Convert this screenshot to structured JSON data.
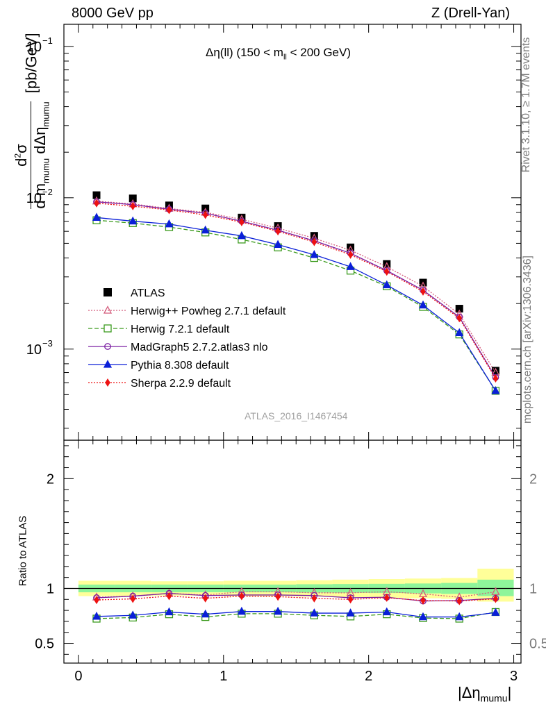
{
  "header": {
    "left_title": "8000 GeV pp",
    "right_title": "Z (Drell-Yan)"
  },
  "side_labels": {
    "rivet": "Rivet 3.1.10, ≥ 1.7M events",
    "mcplots": "mcplots.cern.ch [arXiv:1306.3436]"
  },
  "chart_data": [
    {
      "type": "scatter",
      "panel": "main",
      "annotation": "Δη(ll) (150 < m_ll < 200 GeV)",
      "analysis_label": "ATLAS_2016_I1467454",
      "ylabel": "d²σ / d m_mumu dΔη_mumu [pb/GeV]",
      "yscale": "log",
      "ylim": [
        0.00025,
        0.14
      ],
      "xlim": [
        -0.1,
        3.05
      ],
      "y_ticks": [
        {
          "value": 0.1,
          "base": "10",
          "exp": "−1"
        },
        {
          "value": 0.01,
          "base": "10",
          "exp": "−2"
        },
        {
          "value": 0.001,
          "base": "10",
          "exp": "−3"
        }
      ],
      "legend_position": "middle-left",
      "x": [
        0.125,
        0.375,
        0.625,
        0.875,
        1.125,
        1.375,
        1.625,
        1.875,
        2.125,
        2.375,
        2.625,
        2.875
      ],
      "series": [
        {
          "name": "ATLAS",
          "color": "#000000",
          "marker": "square",
          "line": "none",
          "values": [
            0.0104,
            0.0099,
            0.0089,
            0.0085,
            0.0074,
            0.0065,
            0.0056,
            0.0047,
            0.00365,
            0.00275,
            0.00185,
            0.00072
          ]
        },
        {
          "name": "Herwig++ Powheg 2.7.1 default",
          "color": "#d45c7c",
          "marker": "triangle-open",
          "line": "dotted",
          "values": [
            0.0095,
            0.0091,
            0.0085,
            0.008,
            0.0072,
            0.0063,
            0.0054,
            0.0045,
            0.0035,
            0.0026,
            0.0017,
            0.0007
          ]
        },
        {
          "name": "Herwig 7.2.1 default",
          "color": "#3a9a1c",
          "marker": "square-open",
          "line": "dashed",
          "values": [
            0.0071,
            0.0068,
            0.0064,
            0.0059,
            0.0053,
            0.0047,
            0.004,
            0.0033,
            0.0026,
            0.0019,
            0.00125,
            0.00053
          ]
        },
        {
          "name": "MadGraph5 2.7.2.atlas3 nlo",
          "color": "#7b1fa2",
          "marker": "circle-open",
          "line": "solid",
          "values": [
            0.0094,
            0.009,
            0.0084,
            0.0079,
            0.007,
            0.0061,
            0.0052,
            0.0043,
            0.0033,
            0.00245,
            0.00163,
            0.00065
          ]
        },
        {
          "name": "Pythia 8.308 default",
          "color": "#0a1fd8",
          "marker": "triangle",
          "line": "solid",
          "values": [
            0.0074,
            0.007,
            0.0067,
            0.0061,
            0.0056,
            0.0049,
            0.0042,
            0.0035,
            0.00265,
            0.00195,
            0.00128,
            0.00053
          ]
        },
        {
          "name": "Sherpa 2.2.9 default",
          "color": "#ee1111",
          "marker": "diamond",
          "line": "dotted",
          "values": [
            0.0092,
            0.0088,
            0.0083,
            0.0077,
            0.0069,
            0.006,
            0.0051,
            0.0042,
            0.00325,
            0.0024,
            0.0016,
            0.00064
          ]
        }
      ]
    },
    {
      "type": "scatter",
      "panel": "ratio",
      "ylabel": "Ratio to ATLAS",
      "xlabel": "|Δη_mumu|",
      "ylim": [
        0.32,
        2.35
      ],
      "xlim": [
        -0.1,
        3.05
      ],
      "y_ticks": [
        0.5,
        1,
        2
      ],
      "y_tick_labels": [
        "0.5",
        "1",
        "2"
      ],
      "x_ticks": [
        0,
        1,
        2,
        3
      ],
      "x_tick_labels": [
        "0",
        "1",
        "2",
        "3"
      ],
      "x": [
        0.125,
        0.375,
        0.625,
        0.875,
        1.125,
        1.375,
        1.625,
        1.875,
        2.125,
        2.375,
        2.625,
        2.875
      ],
      "band_edges": [
        0,
        0.25,
        0.5,
        0.75,
        1.0,
        1.25,
        1.5,
        1.75,
        2.0,
        2.25,
        2.5,
        2.75,
        3.0
      ],
      "bands": [
        {
          "name": "total uncertainty",
          "color": "#ffff99",
          "low": [
            0.93,
            0.93,
            0.935,
            0.935,
            0.93,
            0.93,
            0.925,
            0.92,
            0.915,
            0.91,
            0.905,
            0.88
          ],
          "high": [
            1.07,
            1.07,
            1.065,
            1.065,
            1.07,
            1.07,
            1.075,
            1.08,
            1.085,
            1.09,
            1.095,
            1.18
          ]
        },
        {
          "name": "statistical uncertainty",
          "color": "#8ef59a",
          "low": [
            0.965,
            0.965,
            0.965,
            0.965,
            0.965,
            0.965,
            0.962,
            0.96,
            0.958,
            0.955,
            0.95,
            0.93
          ],
          "high": [
            1.035,
            1.035,
            1.035,
            1.035,
            1.035,
            1.035,
            1.038,
            1.04,
            1.042,
            1.045,
            1.05,
            1.08
          ]
        }
      ],
      "series": [
        {
          "name": "Herwig++ Powheg 2.7.1 default",
          "color": "#d45c7c",
          "marker": "triangle-open",
          "line": "dotted",
          "values": [
            0.92,
            0.93,
            0.955,
            0.94,
            0.97,
            0.97,
            0.96,
            0.96,
            0.97,
            0.95,
            0.92,
            0.97
          ]
        },
        {
          "name": "Herwig 7.2.1 default",
          "color": "#3a9a1c",
          "marker": "square-open",
          "line": "dashed",
          "values": [
            0.725,
            0.735,
            0.765,
            0.74,
            0.77,
            0.77,
            0.755,
            0.745,
            0.765,
            0.73,
            0.725,
            0.785
          ]
        },
        {
          "name": "MadGraph5 2.7.2.atlas3 nlo",
          "color": "#7b1fa2",
          "marker": "circle-open",
          "line": "solid",
          "values": [
            0.915,
            0.93,
            0.955,
            0.935,
            0.94,
            0.94,
            0.935,
            0.915,
            0.92,
            0.885,
            0.89,
            0.91
          ]
        },
        {
          "name": "Pythia 8.308 default",
          "color": "#0a1fd8",
          "marker": "triangle",
          "line": "solid",
          "values": [
            0.745,
            0.755,
            0.785,
            0.765,
            0.79,
            0.79,
            0.775,
            0.775,
            0.785,
            0.74,
            0.74,
            0.78
          ]
        },
        {
          "name": "Sherpa 2.2.9 default",
          "color": "#ee1111",
          "marker": "diamond",
          "line": "dotted",
          "values": [
            0.895,
            0.905,
            0.93,
            0.91,
            0.93,
            0.925,
            0.91,
            0.9,
            0.915,
            0.89,
            0.885,
            0.905
          ]
        }
      ]
    }
  ]
}
